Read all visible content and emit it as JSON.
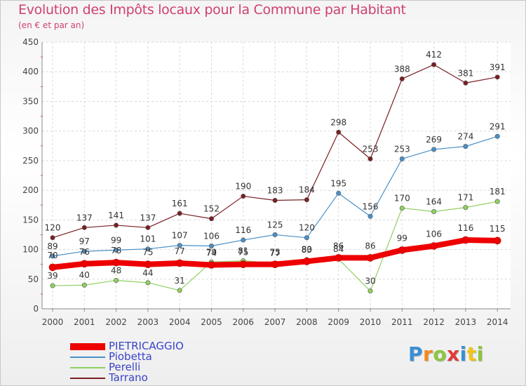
{
  "title": "Evolution des Impôts locaux pour la Commune par Habitant",
  "subtitle": "(en € et par an)",
  "logo": {
    "text": "Proxiti",
    "letters": [
      {
        "ch": "P",
        "color": "#3a8fd6"
      },
      {
        "ch": "r",
        "color": "#f08a1e"
      },
      {
        "ch": "o",
        "color": "#8cc63f"
      },
      {
        "ch": "x",
        "color": "#e23a3a"
      },
      {
        "ch": "i",
        "color": "#3a8fd6"
      },
      {
        "ch": "t",
        "color": "#f0c419"
      },
      {
        "ch": "i",
        "color": "#8cc63f"
      }
    ]
  },
  "chart_data": {
    "type": "line",
    "x": [
      "2000",
      "2001",
      "2002",
      "2003",
      "2004",
      "2005",
      "2006",
      "2007",
      "2008",
      "2009",
      "2010",
      "2011",
      "2012",
      "2013",
      "2014"
    ],
    "ylim": [
      0,
      450
    ],
    "yticks": [
      0,
      50,
      100,
      150,
      200,
      250,
      300,
      350,
      400,
      450
    ],
    "grid": true,
    "legend_position": "bottom-left",
    "series": [
      {
        "name": "Tarrano",
        "color": "#7a1f24",
        "values": [
          120,
          137,
          141,
          137,
          161,
          152,
          190,
          183,
          184,
          298,
          253,
          388,
          412,
          381,
          391
        ]
      },
      {
        "name": "Piobetta",
        "color": "#4a90c8",
        "values": [
          89,
          97,
          99,
          101,
          107,
          106,
          116,
          125,
          120,
          195,
          156,
          253,
          269,
          274,
          291
        ]
      },
      {
        "name": "Perelli",
        "color": "#90d060",
        "values": [
          39,
          40,
          48,
          44,
          31,
          79,
          81,
          77,
          83,
          84,
          30,
          170,
          164,
          171,
          181
        ]
      },
      {
        "name": "PIETRICAGGIO",
        "color": "#ee0000",
        "values": [
          70,
          76,
          78,
          75,
          77,
          74,
          75,
          75,
          80,
          86,
          86,
          99,
          106,
          116,
          115
        ]
      }
    ],
    "legend_order": [
      "PIETRICAGGIO",
      "Piobetta",
      "Perelli",
      "Tarrano"
    ]
  }
}
